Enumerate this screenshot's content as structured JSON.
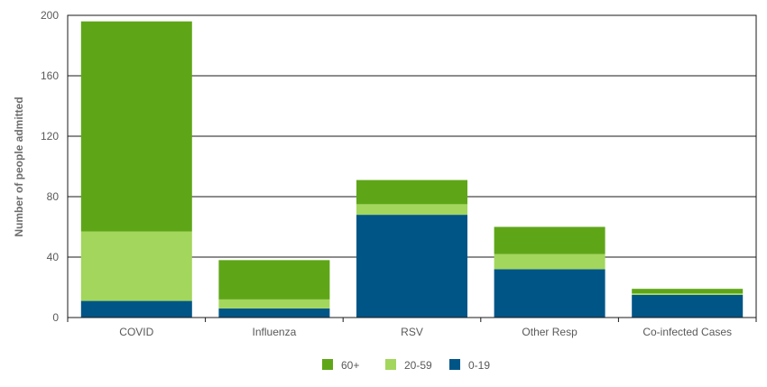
{
  "chart_data": {
    "type": "bar",
    "stacked": true,
    "title": "",
    "xlabel": "",
    "ylabel": "Number of people admitted",
    "ylim": [
      0,
      200
    ],
    "yticks": [
      0,
      40,
      80,
      120,
      160,
      200
    ],
    "grid": true,
    "legend_position": "bottom",
    "categories": [
      "COVID",
      "Influenza",
      "RSV",
      "Other Resp",
      "Co-infected Cases"
    ],
    "series": [
      {
        "name": "0-19",
        "color": "#005587",
        "values": [
          11,
          6,
          68,
          32,
          15
        ]
      },
      {
        "name": "20-59",
        "color": "#a3d65c",
        "values": [
          46,
          6,
          7,
          10,
          1
        ]
      },
      {
        "name": "60+",
        "color": "#5ea618",
        "values": [
          139,
          26,
          16,
          18,
          3
        ]
      }
    ],
    "legend_order": [
      "60+",
      "20-59",
      "0-19"
    ]
  }
}
